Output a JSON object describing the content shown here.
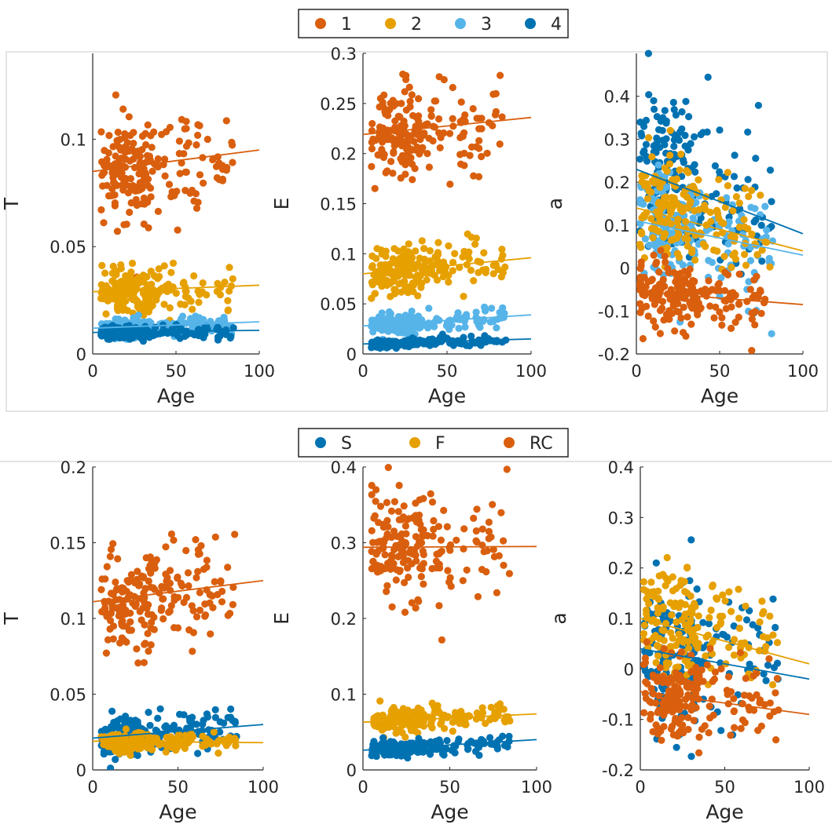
{
  "colors": {
    "c1": "#D95F0E",
    "c2": "#E6A000",
    "c3": "#56B4E9",
    "c4": "#0072B2"
  },
  "legend_top": {
    "entries": [
      {
        "label": "1",
        "color": "#D95F0E"
      },
      {
        "label": "2",
        "color": "#E6A000"
      },
      {
        "label": "3",
        "color": "#56B4E9"
      },
      {
        "label": "4",
        "color": "#0072B2"
      }
    ]
  },
  "legend_bottom": {
    "entries": [
      {
        "label": "S",
        "color": "#0072B2"
      },
      {
        "label": "F",
        "color": "#E6A000"
      },
      {
        "label": "RC",
        "color": "#D95F0E"
      }
    ]
  },
  "chart_data": [
    {
      "type": "scatter",
      "group": "top",
      "xlabel": "Age",
      "ylabel": "T",
      "xlim": [
        0,
        100
      ],
      "ylim": [
        0,
        0.14
      ],
      "xticks": [
        0,
        50,
        100
      ],
      "xtick_labels": [
        "0",
        "50",
        "100"
      ],
      "yticks": [
        0,
        0.05,
        0.1
      ],
      "ytick_labels": [
        "0",
        "0.05",
        "0.1"
      ],
      "series": [
        {
          "name": "1",
          "color": "#D95F0E",
          "n": 200,
          "age_min": 5,
          "age_max": 85,
          "mean": 0.087,
          "spread": 0.012,
          "fit": [
            0.085,
            0.095
          ]
        },
        {
          "name": "2",
          "color": "#E6A000",
          "n": 200,
          "age_min": 5,
          "age_max": 85,
          "mean": 0.03,
          "spread": 0.005,
          "fit": [
            0.029,
            0.032
          ]
        },
        {
          "name": "3",
          "color": "#56B4E9",
          "n": 200,
          "age_min": 5,
          "age_max": 85,
          "mean": 0.013,
          "spread": 0.002,
          "fit": [
            0.012,
            0.015
          ]
        },
        {
          "name": "4",
          "color": "#0072B2",
          "n": 200,
          "age_min": 5,
          "age_max": 85,
          "mean": 0.01,
          "spread": 0.0015,
          "fit": [
            0.01,
            0.011
          ]
        }
      ]
    },
    {
      "type": "scatter",
      "group": "top",
      "xlabel": "Age",
      "ylabel": "E",
      "xlim": [
        0,
        100
      ],
      "ylim": [
        0,
        0.3
      ],
      "xticks": [
        0,
        50,
        100
      ],
      "xtick_labels": [
        "0",
        "50",
        "100"
      ],
      "yticks": [
        0,
        0.05,
        0.1,
        0.15,
        0.2,
        0.25,
        0.3
      ],
      "ytick_labels": [
        "0",
        "0.05",
        "0.1",
        "0.15",
        "0.2",
        "0.25",
        "0.3"
      ],
      "series": [
        {
          "name": "1",
          "color": "#D95F0E",
          "n": 200,
          "age_min": 5,
          "age_max": 85,
          "mean": 0.225,
          "spread": 0.025,
          "fit": [
            0.219,
            0.236
          ]
        },
        {
          "name": "2",
          "color": "#E6A000",
          "n": 200,
          "age_min": 5,
          "age_max": 85,
          "mean": 0.088,
          "spread": 0.012,
          "fit": [
            0.08,
            0.096
          ]
        },
        {
          "name": "3",
          "color": "#56B4E9",
          "n": 200,
          "age_min": 5,
          "age_max": 85,
          "mean": 0.033,
          "spread": 0.005,
          "fit": [
            0.028,
            0.039
          ]
        },
        {
          "name": "4",
          "color": "#0072B2",
          "n": 200,
          "age_min": 5,
          "age_max": 85,
          "mean": 0.012,
          "spread": 0.002,
          "fit": [
            0.01,
            0.015
          ]
        }
      ]
    },
    {
      "type": "scatter",
      "group": "top",
      "xlabel": "Age",
      "ylabel": "a",
      "xlim": [
        0,
        100
      ],
      "ylim": [
        -0.2,
        0.5
      ],
      "xticks": [
        0,
        50,
        100
      ],
      "xtick_labels": [
        "0",
        "50",
        "100"
      ],
      "yticks": [
        -0.2,
        -0.1,
        0,
        0.1,
        0.2,
        0.3,
        0.4
      ],
      "ytick_labels": [
        "-0.2",
        "-0.1",
        "0",
        "0.1",
        "0.2",
        "0.3",
        "0.4"
      ],
      "series": [
        {
          "name": "4",
          "color": "#0072B2",
          "n": 180,
          "age_min": 2,
          "age_max": 82,
          "mean": 0.2,
          "spread": 0.09,
          "fit": [
            0.23,
            0.08
          ]
        },
        {
          "name": "3",
          "color": "#56B4E9",
          "n": 180,
          "age_min": 2,
          "age_max": 82,
          "mean": 0.08,
          "spread": 0.07,
          "fit": [
            0.11,
            0.03
          ]
        },
        {
          "name": "2",
          "color": "#E6A000",
          "n": 180,
          "age_min": 2,
          "age_max": 82,
          "mean": 0.12,
          "spread": 0.06,
          "fit": [
            0.14,
            0.04
          ]
        },
        {
          "name": "1",
          "color": "#D95F0E",
          "n": 200,
          "age_min": 2,
          "age_max": 82,
          "mean": -0.06,
          "spread": 0.04,
          "fit": [
            -0.055,
            -0.085
          ]
        }
      ]
    },
    {
      "type": "scatter",
      "group": "bottom",
      "xlabel": "Age",
      "ylabel": "T",
      "xlim": [
        0,
        100
      ],
      "ylim": [
        0,
        0.2
      ],
      "xticks": [
        0,
        50,
        100
      ],
      "xtick_labels": [
        "0",
        "50",
        "100"
      ],
      "yticks": [
        0,
        0.05,
        0.1,
        0.15,
        0.2
      ],
      "ytick_labels": [
        "0",
        "0.05",
        "0.1",
        "0.15",
        "0.2"
      ],
      "series": [
        {
          "name": "RC",
          "color": "#D95F0E",
          "n": 200,
          "age_min": 5,
          "age_max": 85,
          "mean": 0.115,
          "spread": 0.017,
          "fit": [
            0.111,
            0.125
          ]
        },
        {
          "name": "S",
          "color": "#0072B2",
          "n": 200,
          "age_min": 5,
          "age_max": 85,
          "mean": 0.025,
          "spread": 0.006,
          "fit": [
            0.021,
            0.03
          ]
        },
        {
          "name": "F",
          "color": "#E6A000",
          "n": 200,
          "age_min": 5,
          "age_max": 85,
          "mean": 0.018,
          "spread": 0.003,
          "fit": [
            0.019,
            0.018
          ]
        }
      ]
    },
    {
      "type": "scatter",
      "group": "bottom",
      "xlabel": "Age",
      "ylabel": "E",
      "xlim": [
        0,
        100
      ],
      "ylim": [
        0,
        0.4
      ],
      "xticks": [
        0,
        50,
        100
      ],
      "xtick_labels": [
        "0",
        "50",
        "100"
      ],
      "yticks": [
        0,
        0.1,
        0.2,
        0.3,
        0.4
      ],
      "ytick_labels": [
        "0",
        "0.1",
        "0.2",
        "0.3",
        "0.4"
      ],
      "series": [
        {
          "name": "RC",
          "color": "#D95F0E",
          "n": 200,
          "age_min": 5,
          "age_max": 85,
          "mean": 0.295,
          "spread": 0.035,
          "fit": [
            0.294,
            0.295
          ]
        },
        {
          "name": "F",
          "color": "#E6A000",
          "n": 200,
          "age_min": 5,
          "age_max": 85,
          "mean": 0.068,
          "spread": 0.008,
          "fit": [
            0.063,
            0.074
          ]
        },
        {
          "name": "S",
          "color": "#0072B2",
          "n": 200,
          "age_min": 5,
          "age_max": 85,
          "mean": 0.032,
          "spread": 0.005,
          "fit": [
            0.026,
            0.04
          ]
        }
      ]
    },
    {
      "type": "scatter",
      "group": "bottom",
      "xlabel": "Age",
      "ylabel": "a",
      "xlim": [
        0,
        100
      ],
      "ylim": [
        -0.2,
        0.4
      ],
      "xticks": [
        0,
        50,
        100
      ],
      "xtick_labels": [
        "0",
        "50",
        "100"
      ],
      "yticks": [
        -0.2,
        -0.1,
        0,
        0.1,
        0.2,
        0.3,
        0.4
      ],
      "ytick_labels": [
        "-0.2",
        "-0.1",
        "0",
        "0.1",
        "0.2",
        "0.3",
        "0.4"
      ],
      "series": [
        {
          "name": "S",
          "color": "#0072B2",
          "n": 180,
          "age_min": 2,
          "age_max": 82,
          "mean": 0.02,
          "spread": 0.07,
          "fit": [
            0.04,
            -0.02
          ]
        },
        {
          "name": "F",
          "color": "#E6A000",
          "n": 180,
          "age_min": 2,
          "age_max": 82,
          "mean": 0.08,
          "spread": 0.06,
          "fit": [
            0.1,
            0.01
          ]
        },
        {
          "name": "RC",
          "color": "#D95F0E",
          "n": 200,
          "age_min": 2,
          "age_max": 82,
          "mean": -0.06,
          "spread": 0.04,
          "fit": [
            -0.045,
            -0.09
          ]
        }
      ]
    }
  ]
}
